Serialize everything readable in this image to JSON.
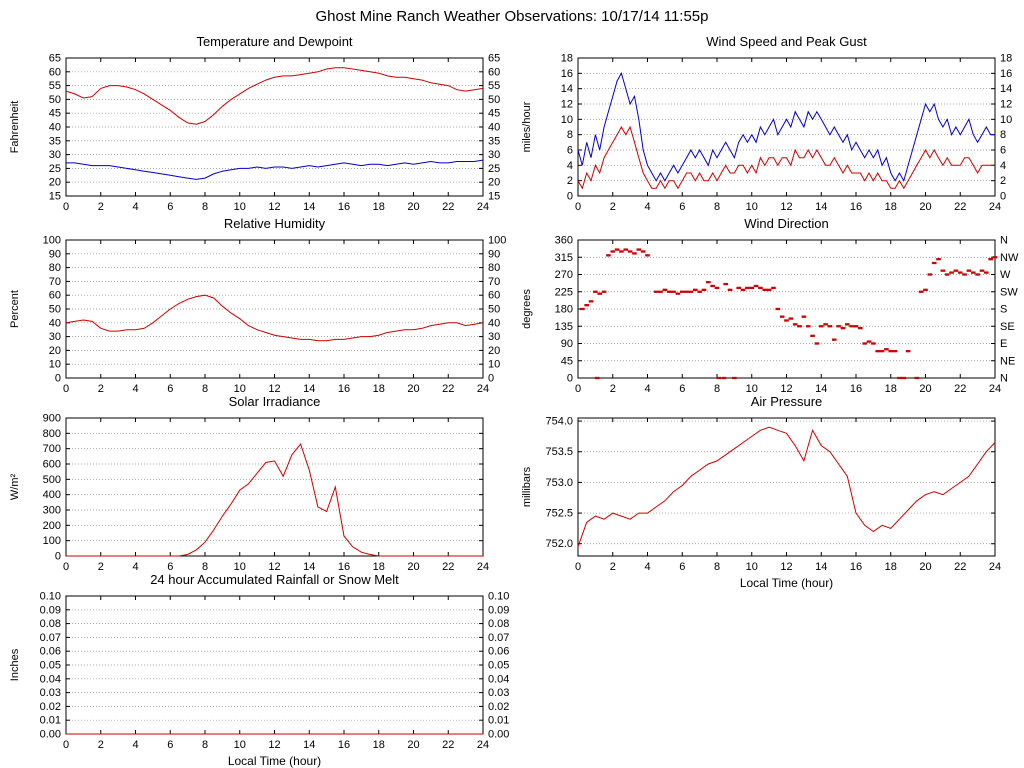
{
  "page": {
    "title": "Ghost Mine Ranch Weather Observations: 10/17/14 11:55p"
  },
  "chart_data": [
    {
      "id": "temperature-dewpoint",
      "title": "Temperature and Dewpoint",
      "type": "line",
      "ylabel": "Fahrenheit",
      "xlabel": "",
      "ylim": [
        15,
        65
      ],
      "yticks": [
        15,
        20,
        25,
        30,
        35,
        40,
        45,
        50,
        55,
        60,
        65
      ],
      "y_decimals": 0,
      "xlim": [
        0,
        24
      ],
      "xticks": [
        0,
        2,
        4,
        6,
        8,
        10,
        12,
        14,
        16,
        18,
        20,
        22,
        24
      ],
      "right_labels": "mirror",
      "grid": true,
      "series": [
        {
          "name": "Temperature",
          "color": "#cc0000",
          "x_start": 0,
          "x_step": 0.5,
          "values": [
            53,
            52,
            50.5,
            51,
            54,
            55,
            55,
            54.5,
            53.5,
            52,
            50,
            48,
            46,
            43.5,
            41.5,
            41,
            42,
            44.5,
            47.5,
            50,
            52,
            54,
            55.5,
            57,
            58,
            58.5,
            58.5,
            59,
            59.5,
            60,
            61,
            61.5,
            61.5,
            61,
            60.5,
            60,
            59.5,
            58.5,
            58,
            58,
            57.5,
            57,
            56,
            55.5,
            55,
            53.5,
            53,
            53.5,
            54
          ]
        },
        {
          "name": "Dewpoint",
          "color": "#0000cc",
          "x_start": 0,
          "x_step": 0.5,
          "values": [
            27,
            27,
            26.5,
            26,
            26,
            26,
            25.5,
            25,
            24.5,
            24,
            23.5,
            23,
            22.5,
            22,
            21.5,
            21,
            21.5,
            23,
            24,
            24.5,
            25,
            25,
            25.5,
            25,
            25.5,
            25.5,
            25,
            25.5,
            26,
            25.5,
            26,
            26.5,
            27,
            26.5,
            26,
            26.5,
            26.5,
            26,
            26.5,
            27,
            26.5,
            27,
            27.5,
            27,
            27,
            27.5,
            27.5,
            27.5,
            28
          ]
        }
      ]
    },
    {
      "id": "wind-speed-gust",
      "title": "Wind Speed and Peak Gust",
      "type": "line",
      "ylabel": "miles/hour",
      "xlabel": "",
      "ylim": [
        0,
        18
      ],
      "yticks": [
        0,
        2,
        4,
        6,
        8,
        10,
        12,
        14,
        16,
        18
      ],
      "y_decimals": 0,
      "xlim": [
        0,
        24
      ],
      "xticks": [
        0,
        2,
        4,
        6,
        8,
        10,
        12,
        14,
        16,
        18,
        20,
        22,
        24
      ],
      "right_labels": "mirror",
      "grid": true,
      "series": [
        {
          "name": "Peak Gust",
          "color": "#0000cc",
          "x_start": 0,
          "x_step": 0.25,
          "values": [
            6,
            4,
            7,
            5,
            8,
            6,
            9,
            11,
            13,
            15,
            16,
            14,
            12,
            13,
            10,
            6,
            4,
            3,
            2,
            3,
            2,
            3,
            4,
            3,
            4,
            5,
            6,
            5,
            6,
            5,
            4,
            6,
            5,
            6,
            7,
            6,
            5,
            7,
            8,
            7,
            8,
            7,
            9,
            8,
            9,
            10,
            8,
            9,
            10,
            9,
            11,
            10,
            9,
            11,
            10,
            11,
            10,
            9,
            8,
            9,
            8,
            7,
            8,
            6,
            7,
            6,
            5,
            6,
            5,
            6,
            4,
            5,
            3,
            2,
            3,
            2,
            4,
            6,
            8,
            10,
            12,
            11,
            12,
            10,
            9,
            10,
            8,
            9,
            8,
            9,
            10,
            8,
            7,
            8,
            9,
            8,
            8
          ]
        },
        {
          "name": "Wind Speed",
          "color": "#cc0000",
          "x_start": 0,
          "x_step": 0.25,
          "values": [
            2,
            1,
            3,
            2,
            4,
            3,
            5,
            6,
            7,
            8,
            9,
            8,
            9,
            7,
            5,
            3,
            2,
            1,
            1,
            2,
            1,
            2,
            2,
            1,
            2,
            3,
            3,
            2,
            3,
            2,
            2,
            3,
            2,
            3,
            4,
            3,
            3,
            4,
            4,
            3,
            4,
            3,
            5,
            4,
            5,
            5,
            4,
            5,
            5,
            4,
            6,
            5,
            5,
            6,
            5,
            6,
            5,
            4,
            4,
            5,
            4,
            3,
            4,
            3,
            3,
            3,
            2,
            3,
            2,
            3,
            2,
            2,
            1,
            1,
            2,
            1,
            2,
            3,
            4,
            5,
            6,
            5,
            6,
            5,
            4,
            5,
            4,
            4,
            4,
            5,
            5,
            4,
            3,
            4,
            4,
            4,
            4
          ]
        }
      ]
    },
    {
      "id": "relative-humidity",
      "title": "Relative Humidity",
      "type": "line",
      "ylabel": "Percent",
      "xlabel": "",
      "ylim": [
        0,
        100
      ],
      "yticks": [
        0,
        10,
        20,
        30,
        40,
        50,
        60,
        70,
        80,
        90,
        100
      ],
      "y_decimals": 0,
      "xlim": [
        0,
        24
      ],
      "xticks": [
        0,
        2,
        4,
        6,
        8,
        10,
        12,
        14,
        16,
        18,
        20,
        22,
        24
      ],
      "right_labels": "mirror",
      "grid": true,
      "series": [
        {
          "name": "Relative Humidity",
          "color": "#cc0000",
          "x_start": 0,
          "x_step": 0.5,
          "values": [
            40,
            41,
            42,
            41,
            36,
            34,
            34,
            35,
            35,
            36,
            40,
            45,
            50,
            54,
            57,
            59,
            60,
            58,
            52,
            47,
            43,
            38,
            35,
            33,
            31,
            30,
            29,
            28,
            28,
            27,
            27,
            28,
            28,
            29,
            30,
            30,
            31,
            33,
            34,
            35,
            35,
            36,
            38,
            39,
            40,
            40,
            38,
            39,
            40
          ]
        }
      ]
    },
    {
      "id": "wind-direction",
      "title": "Wind Direction",
      "type": "scatter",
      "ylabel": "degrees",
      "xlabel": "",
      "ylim": [
        0,
        360
      ],
      "yticks": [
        0,
        45,
        90,
        135,
        180,
        225,
        270,
        315,
        360
      ],
      "y_decimals": 0,
      "xlim": [
        0,
        24
      ],
      "xticks": [
        0,
        2,
        4,
        6,
        8,
        10,
        12,
        14,
        16,
        18,
        20,
        22,
        24
      ],
      "right_labels": [
        "N",
        "NE",
        "E",
        "SE",
        "S",
        "SW",
        "W",
        "NW",
        "N"
      ],
      "grid": true,
      "series": [
        {
          "name": "Wind Direction",
          "color": "#cc0000",
          "points": [
            [
              0.25,
              180
            ],
            [
              0.5,
              190
            ],
            [
              0.75,
              200
            ],
            [
              1,
              225
            ],
            [
              1.1,
              0
            ],
            [
              1.25,
              220
            ],
            [
              1.5,
              225
            ],
            [
              1.75,
              320
            ],
            [
              2,
              330
            ],
            [
              2.25,
              335
            ],
            [
              2.5,
              330
            ],
            [
              2.75,
              335
            ],
            [
              3,
              330
            ],
            [
              3.25,
              325
            ],
            [
              3.5,
              335
            ],
            [
              3.75,
              330
            ],
            [
              4,
              320
            ],
            [
              4.5,
              225
            ],
            [
              4.75,
              225
            ],
            [
              5,
              230
            ],
            [
              5.25,
              225
            ],
            [
              5.5,
              225
            ],
            [
              5.75,
              220
            ],
            [
              6,
              225
            ],
            [
              6.25,
              225
            ],
            [
              6.5,
              225
            ],
            [
              6.75,
              230
            ],
            [
              7,
              225
            ],
            [
              7.25,
              230
            ],
            [
              7.5,
              250
            ],
            [
              7.75,
              240
            ],
            [
              8,
              235
            ],
            [
              8.1,
              0
            ],
            [
              8.4,
              0
            ],
            [
              8.5,
              245
            ],
            [
              8.75,
              230
            ],
            [
              9,
              0
            ],
            [
              9.25,
              235
            ],
            [
              9.5,
              230
            ],
            [
              9.75,
              235
            ],
            [
              10,
              235
            ],
            [
              10.25,
              240
            ],
            [
              10.5,
              235
            ],
            [
              10.75,
              230
            ],
            [
              11,
              230
            ],
            [
              11.25,
              235
            ],
            [
              11.5,
              180
            ],
            [
              11.75,
              160
            ],
            [
              12,
              150
            ],
            [
              12.25,
              155
            ],
            [
              12.5,
              140
            ],
            [
              12.75,
              135
            ],
            [
              13,
              160
            ],
            [
              13.25,
              135
            ],
            [
              13.5,
              110
            ],
            [
              13.75,
              90
            ],
            [
              14,
              135
            ],
            [
              14.25,
              140
            ],
            [
              14.5,
              135
            ],
            [
              14.75,
              100
            ],
            [
              15,
              135
            ],
            [
              15.25,
              130
            ],
            [
              15.5,
              140
            ],
            [
              15.75,
              135
            ],
            [
              16,
              135
            ],
            [
              16.25,
              130
            ],
            [
              16.5,
              90
            ],
            [
              16.75,
              95
            ],
            [
              17,
              90
            ],
            [
              17.25,
              70
            ],
            [
              17.5,
              70
            ],
            [
              17.75,
              75
            ],
            [
              18,
              70
            ],
            [
              18.25,
              70
            ],
            [
              18.5,
              0
            ],
            [
              18.75,
              0
            ],
            [
              19,
              70
            ],
            [
              19.5,
              0
            ],
            [
              19.75,
              225
            ],
            [
              20,
              230
            ],
            [
              20.25,
              270
            ],
            [
              20.5,
              300
            ],
            [
              20.75,
              310
            ],
            [
              21,
              280
            ],
            [
              21.25,
              270
            ],
            [
              21.5,
              275
            ],
            [
              21.75,
              280
            ],
            [
              22,
              275
            ],
            [
              22.25,
              270
            ],
            [
              22.5,
              280
            ],
            [
              22.75,
              275
            ],
            [
              23,
              270
            ],
            [
              23.25,
              280
            ],
            [
              23.5,
              275
            ],
            [
              23.75,
              310
            ],
            [
              24,
              315
            ]
          ]
        }
      ]
    },
    {
      "id": "solar-irradiance",
      "title": "Solar Irradiance",
      "type": "line",
      "ylabel": "W/m²",
      "xlabel": "",
      "ylim": [
        0,
        900
      ],
      "yticks": [
        0,
        100,
        200,
        300,
        400,
        500,
        600,
        700,
        800,
        900
      ],
      "y_decimals": 0,
      "xlim": [
        0,
        24
      ],
      "xticks": [
        0,
        2,
        4,
        6,
        8,
        10,
        12,
        14,
        16,
        18,
        20,
        22,
        24
      ],
      "right_labels": null,
      "grid": true,
      "series": [
        {
          "name": "Solar Irradiance",
          "color": "#cc0000",
          "x_start": 0,
          "x_step": 0.5,
          "values": [
            0,
            0,
            0,
            0,
            0,
            0,
            0,
            0,
            0,
            0,
            0,
            0,
            0,
            0,
            10,
            40,
            90,
            170,
            260,
            340,
            430,
            470,
            540,
            610,
            620,
            520,
            660,
            730,
            560,
            320,
            290,
            450,
            130,
            60,
            25,
            10,
            0,
            0,
            0,
            0,
            0,
            0,
            0,
            0,
            0,
            0,
            0,
            0,
            0
          ]
        }
      ]
    },
    {
      "id": "air-pressure",
      "title": "Air Pressure",
      "type": "line",
      "ylabel": "millibars",
      "xlabel": "Local Time (hour)",
      "ylim": [
        751.8,
        754.05
      ],
      "yticks": [
        752.0,
        752.5,
        753.0,
        753.5,
        754.0
      ],
      "y_decimals": 1,
      "xlim": [
        0,
        24
      ],
      "xticks": [
        0,
        2,
        4,
        6,
        8,
        10,
        12,
        14,
        16,
        18,
        20,
        22,
        24
      ],
      "right_labels": null,
      "grid": true,
      "series": [
        {
          "name": "Air Pressure",
          "color": "#cc0000",
          "x_start": 0,
          "x_step": 0.5,
          "values": [
            751.95,
            752.35,
            752.45,
            752.4,
            752.5,
            752.45,
            752.4,
            752.5,
            752.5,
            752.6,
            752.7,
            752.85,
            752.95,
            753.1,
            753.2,
            753.3,
            753.35,
            753.45,
            753.55,
            753.65,
            753.75,
            753.85,
            753.9,
            753.85,
            753.8,
            753.6,
            753.35,
            753.85,
            753.6,
            753.5,
            753.3,
            753.1,
            752.5,
            752.3,
            752.2,
            752.3,
            752.25,
            752.4,
            752.55,
            752.7,
            752.8,
            752.85,
            752.8,
            752.9,
            753.0,
            753.1,
            753.3,
            753.5,
            753.65
          ]
        }
      ]
    },
    {
      "id": "rainfall",
      "title": "24 hour Accumulated Rainfall or Snow Melt",
      "type": "line",
      "ylabel": "Inches",
      "xlabel": "Local Time (hour)",
      "ylim": [
        0,
        0.1
      ],
      "yticks": [
        0,
        0.01,
        0.02,
        0.03,
        0.04,
        0.05,
        0.06,
        0.07,
        0.08,
        0.09,
        0.1
      ],
      "y_decimals": 2,
      "xlim": [
        0,
        24
      ],
      "xticks": [
        0,
        2,
        4,
        6,
        8,
        10,
        12,
        14,
        16,
        18,
        20,
        22,
        24
      ],
      "right_labels": "mirror",
      "grid": true,
      "series": [
        {
          "name": "Accumulated Rainfall",
          "color": "#cc0000",
          "x_start": 0,
          "x_step": 24,
          "values": [
            0,
            0
          ]
        }
      ]
    }
  ]
}
